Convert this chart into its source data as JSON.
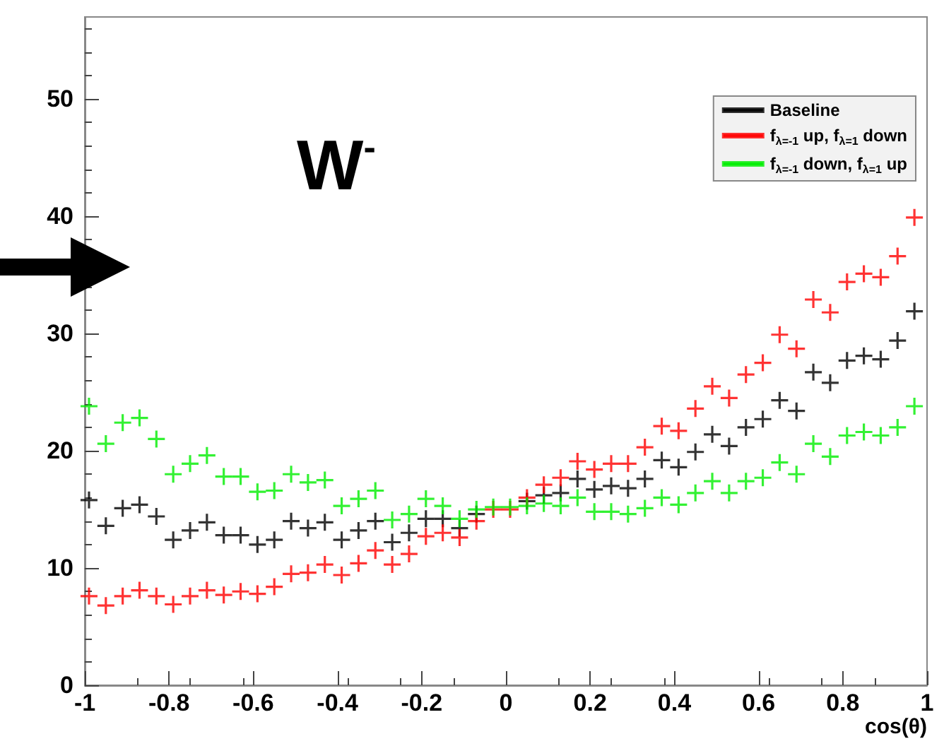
{
  "chart_data": {
    "type": "scatter",
    "title": "W$^{-}$",
    "xlabel": "cos(θ)",
    "x": [
      -0.99,
      -0.95,
      -0.91,
      -0.87,
      -0.83,
      -0.79,
      -0.75,
      -0.71,
      -0.67,
      -0.63,
      -0.59,
      -0.55,
      -0.51,
      -0.47,
      -0.43,
      -0.39,
      -0.35,
      -0.31,
      -0.27,
      -0.23,
      -0.19,
      -0.15,
      -0.11,
      -0.07,
      -0.03,
      0.01,
      0.05,
      0.09,
      0.13,
      0.17,
      0.21,
      0.25,
      0.29,
      0.33,
      0.37,
      0.41,
      0.45,
      0.49,
      0.53,
      0.57,
      0.61,
      0.65,
      0.69,
      0.73,
      0.77,
      0.81,
      0.85,
      0.89,
      0.93,
      0.97
    ],
    "series": [
      {
        "name": "Baseline",
        "color": "#000000",
        "values": [
          15.8,
          13.6,
          15.1,
          15.4,
          14.4,
          12.4,
          13.2,
          13.9,
          12.8,
          12.8,
          12.0,
          12.4,
          14.0,
          13.4,
          13.9,
          12.4,
          13.2,
          14.0,
          12.2,
          13.0,
          14.2,
          14.2,
          13.4,
          14.6,
          null,
          null,
          15.7,
          16.2,
          16.4,
          17.6,
          16.7,
          17.0,
          16.8,
          17.6,
          19.2,
          18.6,
          19.9,
          21.4,
          20.4,
          22.0,
          22.7,
          24.3,
          23.4,
          26.7,
          25.8,
          27.7,
          28.1,
          27.8,
          29.4,
          31.9
        ]
      },
      {
        "name": "f$_{λ=-1}$ up, f$_{λ=1}$ down",
        "color": "#ff0000",
        "values": [
          7.6,
          6.8,
          7.6,
          8.1,
          7.6,
          6.9,
          7.6,
          8.1,
          7.7,
          8.0,
          7.8,
          8.4,
          9.5,
          9.6,
          10.3,
          9.4,
          10.4,
          11.5,
          10.3,
          11.2,
          12.7,
          13.0,
          12.6,
          14.0,
          15.0,
          15.0,
          16.0,
          17.1,
          17.7,
          19.1,
          18.4,
          18.9,
          18.9,
          20.3,
          22.1,
          21.7,
          23.6,
          25.5,
          24.5,
          26.5,
          27.5,
          29.9,
          28.7,
          32.9,
          31.8,
          34.4,
          35.1,
          34.8,
          36.6,
          39.9
        ]
      },
      {
        "name": "f$_{λ=-1}$ down, f$_{λ=1}$ up",
        "color": "#00ee00",
        "values": [
          23.8,
          20.6,
          22.4,
          22.8,
          21.0,
          18.0,
          18.9,
          19.6,
          17.8,
          17.8,
          16.5,
          16.6,
          18.0,
          17.3,
          17.5,
          15.3,
          15.9,
          16.6,
          14.1,
          14.6,
          15.9,
          15.3,
          14.2,
          15.0,
          15.2,
          15.2,
          15.3,
          15.5,
          15.3,
          16.0,
          14.8,
          14.8,
          14.6,
          15.1,
          16.0,
          15.4,
          16.4,
          17.4,
          16.4,
          17.4,
          17.7,
          19.0,
          18.0,
          20.6,
          19.5,
          21.3,
          21.6,
          21.3,
          22.0,
          23.8
        ]
      }
    ],
    "xlim": [
      -1,
      1
    ],
    "xticks": [
      -1,
      -0.8,
      -0.6,
      -0.4,
      -0.2,
      0,
      0.2,
      0.4,
      0.6,
      0.8,
      1
    ],
    "ylim": [
      0,
      57
    ],
    "yticks": [
      0,
      10,
      20,
      30,
      40,
      50
    ],
    "grid": false,
    "legend": "top right",
    "marker": "cross"
  }
}
